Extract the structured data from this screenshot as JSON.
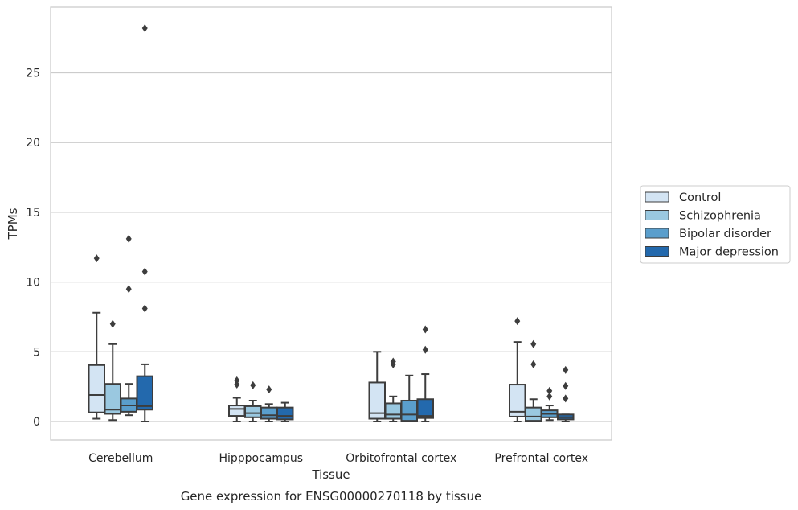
{
  "chart_data": {
    "type": "box",
    "title": "Gene expression for ENSG00000270118 by tissue",
    "xlabel": "Tissue",
    "ylabel": "TPMs",
    "ylim": [
      -1.4,
      29.9
    ],
    "yticks": [
      0,
      5,
      10,
      15,
      20,
      25
    ],
    "grid": "horizontal",
    "legend_position": "right",
    "categories": [
      "Cerebellum",
      "Hipppocampus",
      "Orbitofrontal cortex",
      "Prefrontal cortex"
    ],
    "series": [
      {
        "name": "Control",
        "color": "#d3e4f3",
        "boxes": [
          {
            "whislo": 0.2,
            "q1": 0.65,
            "med": 1.9,
            "q3": 4.05,
            "whishi": 7.8,
            "fliers": [
              11.7
            ]
          },
          {
            "whislo": 0.0,
            "q1": 0.4,
            "med": 0.9,
            "q3": 1.15,
            "whishi": 1.7,
            "fliers": [
              2.65,
              2.95
            ]
          },
          {
            "whislo": 0.0,
            "q1": 0.2,
            "med": 0.6,
            "q3": 2.8,
            "whishi": 5.0,
            "fliers": []
          },
          {
            "whislo": 0.0,
            "q1": 0.35,
            "med": 0.7,
            "q3": 2.65,
            "whishi": 5.7,
            "fliers": [
              7.2
            ]
          }
        ]
      },
      {
        "name": "Schizophrenia",
        "color": "#9ac8e0",
        "boxes": [
          {
            "whislo": 0.1,
            "q1": 0.55,
            "med": 0.85,
            "q3": 2.7,
            "whishi": 5.55,
            "fliers": [
              7.0
            ]
          },
          {
            "whislo": 0.0,
            "q1": 0.3,
            "med": 0.6,
            "q3": 1.1,
            "whishi": 1.5,
            "fliers": [
              2.6
            ]
          },
          {
            "whislo": 0.0,
            "q1": 0.2,
            "med": 0.5,
            "q3": 1.3,
            "whishi": 1.8,
            "fliers": [
              4.1,
              4.3
            ]
          },
          {
            "whislo": 0.0,
            "q1": 0.05,
            "med": 0.35,
            "q3": 1.0,
            "whishi": 1.6,
            "fliers": [
              4.1,
              5.55
            ]
          }
        ]
      },
      {
        "name": "Bipolar disorder",
        "color": "#5a9ecc",
        "boxes": [
          {
            "whislo": 0.45,
            "q1": 0.7,
            "med": 1.15,
            "q3": 1.65,
            "whishi": 2.7,
            "fliers": [
              9.5,
              13.1
            ]
          },
          {
            "whislo": 0.0,
            "q1": 0.2,
            "med": 0.45,
            "q3": 1.0,
            "whishi": 1.25,
            "fliers": [
              2.3
            ]
          },
          {
            "whislo": 0.0,
            "q1": 0.05,
            "med": 0.5,
            "q3": 1.5,
            "whishi": 3.3,
            "fliers": []
          },
          {
            "whislo": 0.1,
            "q1": 0.3,
            "med": 0.55,
            "q3": 0.8,
            "whishi": 1.15,
            "fliers": [
              1.8,
              2.2
            ]
          }
        ]
      },
      {
        "name": "Major depression",
        "color": "#2369ad",
        "boxes": [
          {
            "whislo": 0.0,
            "q1": 0.85,
            "med": 1.1,
            "q3": 3.25,
            "whishi": 4.1,
            "fliers": [
              8.1,
              10.75,
              28.2
            ]
          },
          {
            "whislo": 0.0,
            "q1": 0.15,
            "med": 0.4,
            "q3": 1.0,
            "whishi": 1.35,
            "fliers": []
          },
          {
            "whislo": 0.0,
            "q1": 0.25,
            "med": 0.4,
            "q3": 1.6,
            "whishi": 3.4,
            "fliers": [
              5.15,
              6.6
            ]
          },
          {
            "whislo": 0.0,
            "q1": 0.15,
            "med": 0.3,
            "q3": 0.5,
            "whishi": 0.5,
            "fliers": [
              1.65,
              2.55,
              3.7
            ]
          }
        ]
      }
    ]
  }
}
